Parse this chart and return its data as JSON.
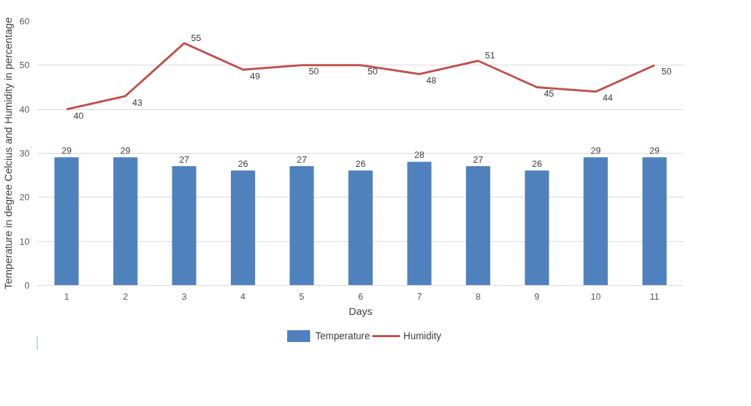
{
  "chart_data": {
    "type": "bar",
    "xlabel": "Days",
    "ylabel": "Temperature in degree Celcius and Humidity in percentage",
    "categories": [
      "1",
      "2",
      "3",
      "4",
      "5",
      "6",
      "7",
      "8",
      "9",
      "10",
      "11"
    ],
    "series": [
      {
        "name": "Temperature",
        "color": "#4f81bd",
        "values": [
          29,
          29,
          27,
          26,
          27,
          26,
          28,
          27,
          26,
          29,
          29
        ]
      },
      {
        "name": "Humidity",
        "type": "line",
        "color": "#c0504d",
        "values": [
          40,
          43,
          55,
          49,
          50,
          50,
          48,
          51,
          45,
          44,
          50
        ]
      }
    ],
    "ylim": [
      0,
      60
    ],
    "yticks": [
      0,
      10,
      20,
      30,
      40,
      50,
      60
    ],
    "grid": "y",
    "legend": "bottom",
    "data_labels": true
  }
}
